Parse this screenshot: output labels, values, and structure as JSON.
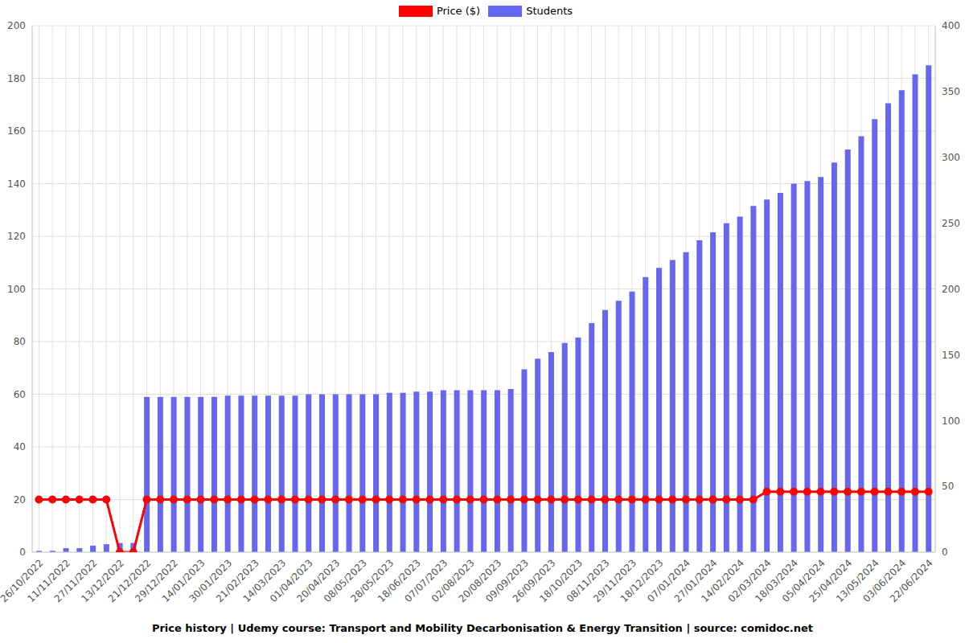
{
  "chart_data": {
    "type": "bar",
    "title": "Price history | Udemy course: Transport and Mobility Decarbonisation & Energy Transition | source: comidoc.net",
    "categories": [
      "26/10/2022",
      null,
      "11/11/2022",
      null,
      "27/11/2022",
      null,
      "13/12/2022",
      null,
      "21/12/2022",
      null,
      "29/12/2022",
      null,
      "14/01/2023",
      null,
      "30/01/2023",
      null,
      "21/02/2023",
      null,
      "14/03/2023",
      null,
      "01/04/2023",
      null,
      "20/04/2023",
      null,
      "08/05/2023",
      null,
      "28/05/2023",
      null,
      "18/06/2023",
      null,
      "07/07/2023",
      null,
      "02/08/2023",
      null,
      "20/08/2023",
      null,
      "09/09/2023",
      null,
      "26/09/2023",
      null,
      "18/10/2023",
      null,
      "08/11/2023",
      null,
      "29/11/2023",
      null,
      "18/12/2023",
      null,
      "07/01/2024",
      null,
      "27/01/2024",
      null,
      "14/02/2024",
      null,
      "02/03/2024",
      null,
      "18/03/2024",
      null,
      "05/04/2024",
      null,
      "25/04/2024",
      null,
      "13/05/2024",
      null,
      "03/06/2024",
      null,
      "22/06/2024"
    ],
    "series": [
      {
        "name": "Price ($)",
        "type": "line",
        "color": "#ff0000",
        "marker": "circle",
        "values": [
          20,
          20,
          20,
          20,
          20,
          20,
          0,
          0,
          20,
          20,
          20,
          20,
          20,
          20,
          20,
          20,
          20,
          20,
          20,
          20,
          20,
          20,
          20,
          20,
          20,
          20,
          20,
          20,
          20,
          20,
          20,
          20,
          20,
          20,
          20,
          20,
          20,
          20,
          20,
          20,
          20,
          20,
          20,
          20,
          20,
          20,
          20,
          20,
          20,
          20,
          20,
          20,
          20,
          20,
          23,
          23,
          23,
          23,
          23,
          23,
          23,
          23,
          23,
          23,
          23,
          23,
          23
        ]
      },
      {
        "name": "Students",
        "type": "bar",
        "color": "#6666ee",
        "axis": "y2",
        "values": [
          1,
          1,
          3,
          3,
          5,
          6,
          7,
          7,
          118,
          118,
          118,
          118,
          118,
          118,
          119,
          119,
          119,
          119,
          119,
          119,
          120,
          120,
          120,
          120,
          120,
          120,
          121,
          121,
          122,
          122,
          123,
          123,
          123,
          123,
          123,
          124,
          139,
          147,
          152,
          159,
          163,
          174,
          184,
          191,
          198,
          209,
          216,
          222,
          228,
          237,
          243,
          250,
          255,
          263,
          268,
          273,
          280,
          282,
          285,
          296,
          306,
          316,
          329,
          341,
          351,
          363,
          370
        ]
      }
    ],
    "ylim": [
      0,
      200
    ],
    "yticks": [
      0,
      20,
      40,
      60,
      80,
      100,
      120,
      140,
      160,
      180,
      200
    ],
    "y2lim": [
      0,
      400
    ],
    "y2ticks": [
      0,
      50,
      100,
      150,
      200,
      250,
      300,
      350,
      400
    ],
    "grid": true,
    "legend": "top"
  }
}
